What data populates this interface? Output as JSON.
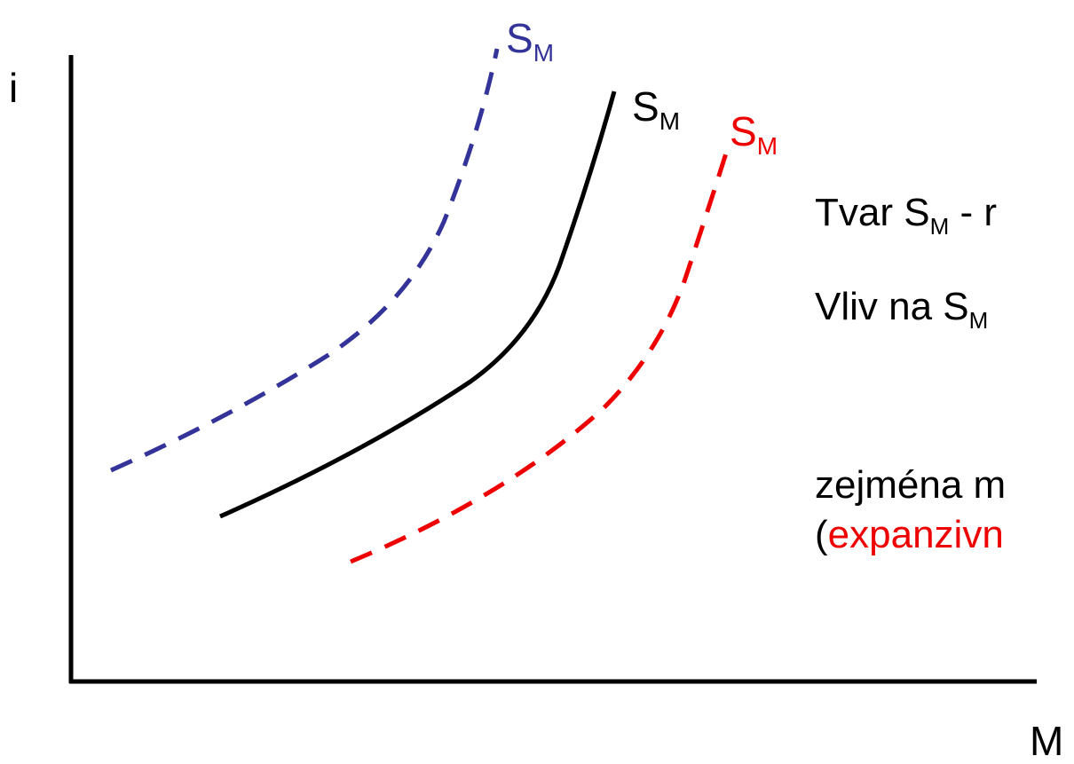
{
  "axes": {
    "y_label": "i",
    "x_label": "M"
  },
  "curves": [
    {
      "id": "blue",
      "label_main": "S",
      "label_sub": "M",
      "color": "#333399",
      "style": "dashed"
    },
    {
      "id": "black",
      "label_main": "S",
      "label_sub": "M",
      "color": "#000000",
      "style": "solid"
    },
    {
      "id": "red",
      "label_main": "S",
      "label_sub": "M",
      "color": "#ee0000",
      "style": "dashed"
    }
  ],
  "notes": {
    "line1": {
      "pre": "Tvar S",
      "sub": "M",
      "post": " - r"
    },
    "line2": {
      "pre": "Vliv na S",
      "sub": "M"
    },
    "line3": {
      "text": "zejména m"
    },
    "line4": {
      "paren": "(",
      "red_text": "expanzivn"
    }
  },
  "colors": {
    "axis": "#000000",
    "blue": "#333399",
    "black": "#000000",
    "red": "#ee0000"
  }
}
